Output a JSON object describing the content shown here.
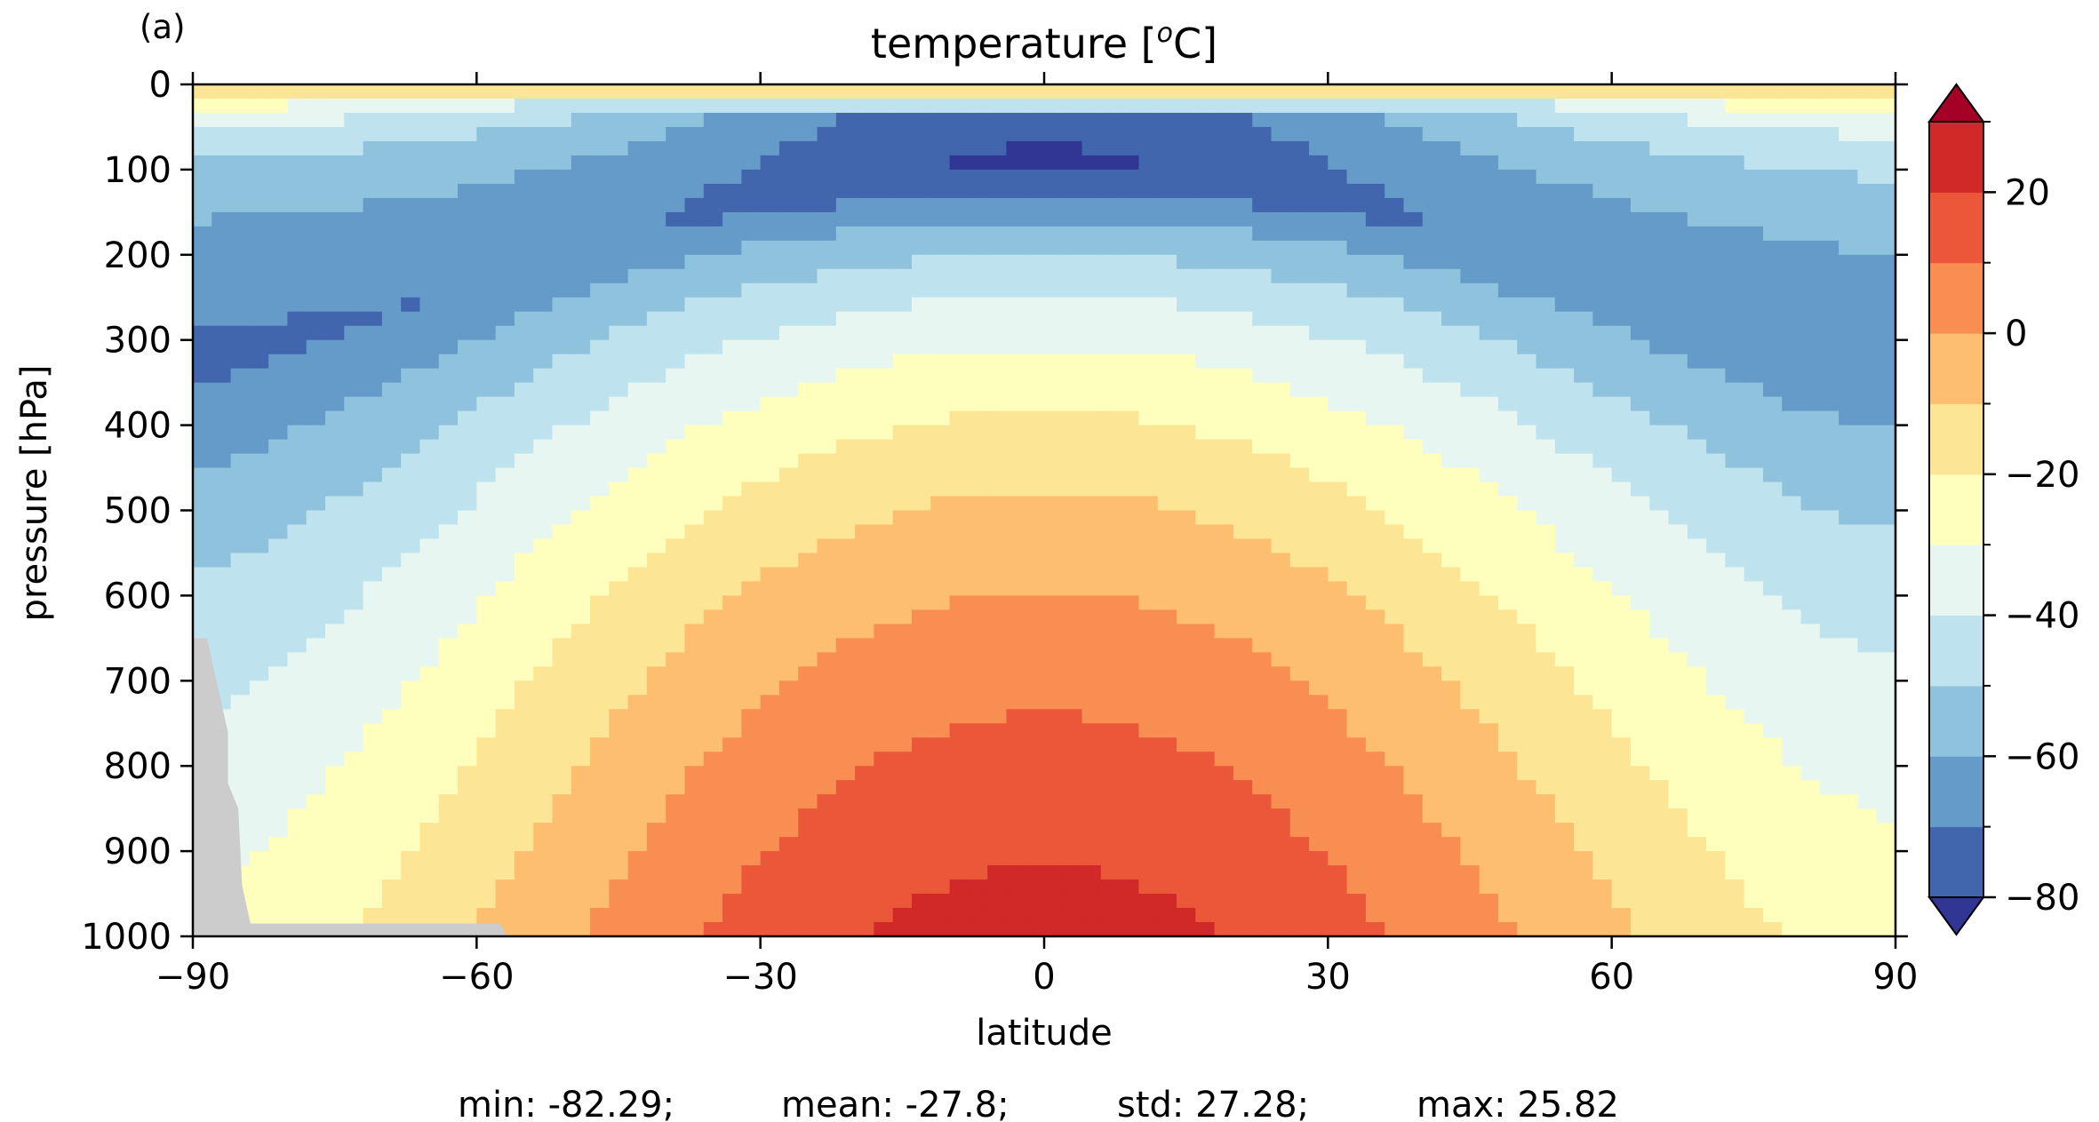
{
  "panel_label": "(a)",
  "title": "temperature [°C]",
  "title_base": "temperature [",
  "title_sup": "o",
  "title_end": "C]",
  "xlabel": "latitude",
  "ylabel": "pressure [hPa]",
  "stats": {
    "min": "min: -82.29;",
    "mean": "mean: -27.8;",
    "std": "std: 27.28;",
    "max": "max: 25.82"
  },
  "colors": {
    "levels": [
      "#313695",
      "#4166ad",
      "#649bc8",
      "#8fc3dd",
      "#bfe3ee",
      "#e8f6f1",
      "#fefebd",
      "#fce595",
      "#fdbe70",
      "#f98e52",
      "#ea5739",
      "#d02927",
      "#a50026"
    ],
    "land_mask": "#cccccc"
  },
  "chart_data": {
    "type": "heatmap",
    "subtype": "filled-contour",
    "x": {
      "label": "latitude",
      "range": [
        -90,
        90
      ],
      "ticks": [
        -90,
        -60,
        -30,
        0,
        30,
        60,
        90
      ],
      "tick_labels": [
        "−90",
        "−60",
        "−30",
        "0",
        "30",
        "60",
        "90"
      ]
    },
    "y": {
      "label": "pressure [hPa]",
      "range": [
        1000,
        0
      ],
      "inverted": true,
      "ticks": [
        0,
        100,
        200,
        300,
        400,
        500,
        600,
        700,
        800,
        900,
        1000
      ],
      "tick_labels": [
        "0",
        "100",
        "200",
        "300",
        "400",
        "500",
        "600",
        "700",
        "800",
        "900",
        "1000"
      ]
    },
    "colorbar": {
      "boundaries": [
        -80,
        -70,
        -60,
        -50,
        -40,
        -30,
        -20,
        -10,
        0,
        10,
        20,
        30
      ],
      "ticks": [
        -80,
        -60,
        -40,
        -20,
        0,
        20
      ],
      "tick_labels": [
        "−80",
        "−60",
        "−40",
        "−20",
        "0",
        "20"
      ],
      "extend": "both"
    },
    "field_description": "zonal-mean temperature; warmest (>20) near surface in tropics, coldest (<-80) at ~100 hPa over equator, grey masked surface near south pole",
    "stats": {
      "min": -82.29,
      "mean": -27.8,
      "std": 27.28,
      "max": 25.82
    }
  }
}
